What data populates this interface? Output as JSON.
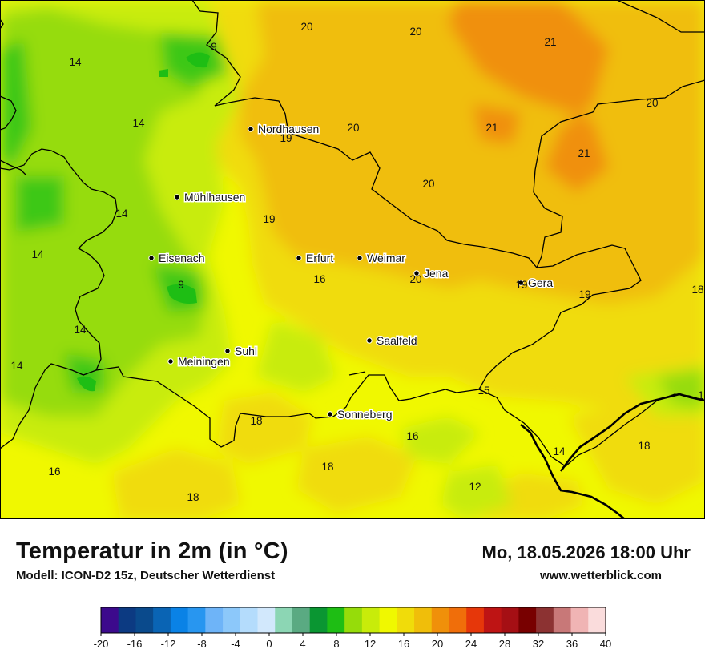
{
  "map": {
    "cities": [
      {
        "name": "Nordhausen"
      },
      {
        "name": "Mühlhausen"
      },
      {
        "name": "Eisenach"
      },
      {
        "name": "Erfurt"
      },
      {
        "name": "Weimar"
      },
      {
        "name": "Jena"
      },
      {
        "name": "Gera"
      },
      {
        "name": "Saalfeld"
      },
      {
        "name": "Suhl"
      },
      {
        "name": "Meiningen"
      },
      {
        "name": "Sonneberg"
      }
    ],
    "temperature_labels": [
      "20",
      "20",
      "21",
      "9",
      "14",
      "14",
      "20",
      "21",
      "20",
      "19",
      "21",
      "20",
      "14",
      "19",
      "14",
      "16",
      "20",
      "19",
      "18",
      "9",
      "14",
      "19",
      "14",
      "15",
      "18",
      "16",
      "14",
      "18",
      "16",
      "18",
      "12",
      "18",
      "1"
    ]
  },
  "footer": {
    "title": "Temperatur in 2m (in °C)",
    "model": "Modell: ICON-D2 15z, Deutscher Wetterdienst",
    "datetime": "Mo, 18.05.2026 18:00 Uhr",
    "url": "www.wetterblick.com"
  },
  "legend": {
    "tick_labels": [
      "-20",
      "-16",
      "-12",
      "-8",
      "-4",
      "0",
      "4",
      "8",
      "12",
      "16",
      "20",
      "24",
      "28",
      "32",
      "36",
      "40"
    ],
    "colors": [
      "#3c0a8c",
      "#0c3a82",
      "#0a4a8c",
      "#0a64b4",
      "#0a82e6",
      "#2896f0",
      "#6eb4f8",
      "#8cc8fa",
      "#b4dcfc",
      "#d2e8fc",
      "#8cd6b4",
      "#5aaa82",
      "#0a9632",
      "#1ebe14",
      "#96dc0a",
      "#c8ec0a",
      "#f0f800",
      "#f0dc0a",
      "#f0be0a",
      "#f0900a",
      "#f06e0a",
      "#e6370a",
      "#be1414",
      "#a50f14",
      "#780000",
      "#8c3232",
      "#c87878",
      "#f0b4b4",
      "#fadcdc"
    ]
  }
}
